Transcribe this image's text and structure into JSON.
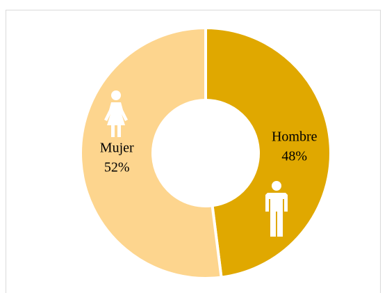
{
  "chart_data": {
    "type": "donut",
    "categories": [
      "Hombre",
      "Mujer"
    ],
    "values": [
      48,
      52
    ],
    "value_labels": [
      "48%",
      "52%"
    ],
    "colors": [
      "#e0a800",
      "#fdd58e"
    ]
  }
}
